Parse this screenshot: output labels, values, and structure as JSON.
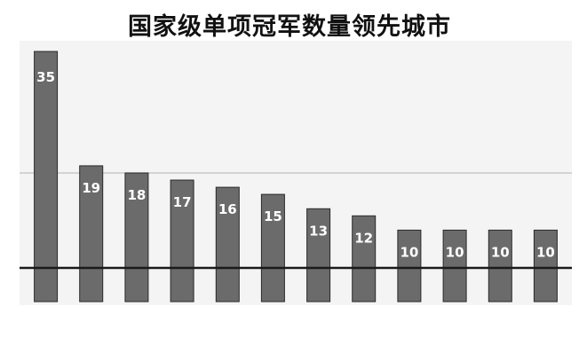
{
  "chart_data": {
    "type": "bar",
    "title": "国家级单项冠军数量领先城市",
    "categories": [
      "",
      "",
      "",
      "",
      "",
      "",
      "",
      "",
      "",
      "",
      "",
      ""
    ],
    "values": [
      35,
      19,
      18,
      17,
      16,
      15,
      13,
      12,
      10,
      10,
      10,
      10
    ],
    "data_labels": [
      "35",
      "19",
      "18",
      "17",
      "16",
      "15",
      "13",
      "12",
      "10",
      "10",
      "10",
      "10"
    ],
    "grid": true,
    "legend": "none",
    "colors": {
      "bar": "#6b6b6b",
      "bar_edge": "#2a2a2a",
      "label": "#ffffff",
      "grid": "#c8c8c8",
      "axis": "#1a1a1a"
    }
  }
}
